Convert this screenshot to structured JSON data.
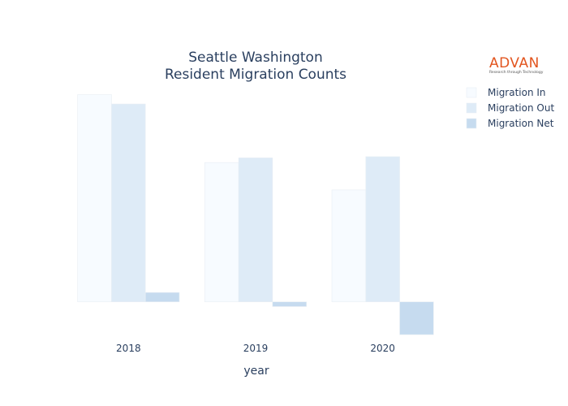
{
  "logo": {
    "name": "ADVAN",
    "tagline": "Research through Technology"
  },
  "chart_data": {
    "type": "bar",
    "title_lines": [
      "Seattle Washington",
      "Resident Migration Counts"
    ],
    "xlabel": "year",
    "ylabel": "",
    "categories": [
      "2018",
      "2019",
      "2020"
    ],
    "series": [
      {
        "name": "Migration In",
        "color": "#f7fbff",
        "values": [
          17700,
          11900,
          9560
        ]
      },
      {
        "name": "Migration Out",
        "color": "#deebf7",
        "values": [
          16900,
          12300,
          12400
        ]
      },
      {
        "name": "Migration Net",
        "color": "#c6dbef",
        "values": [
          800,
          -400,
          -2800
        ]
      }
    ],
    "ylim": [
      -3000,
      18500
    ],
    "y_axis_visible": false,
    "grid": false,
    "legend_position": "top-right"
  }
}
